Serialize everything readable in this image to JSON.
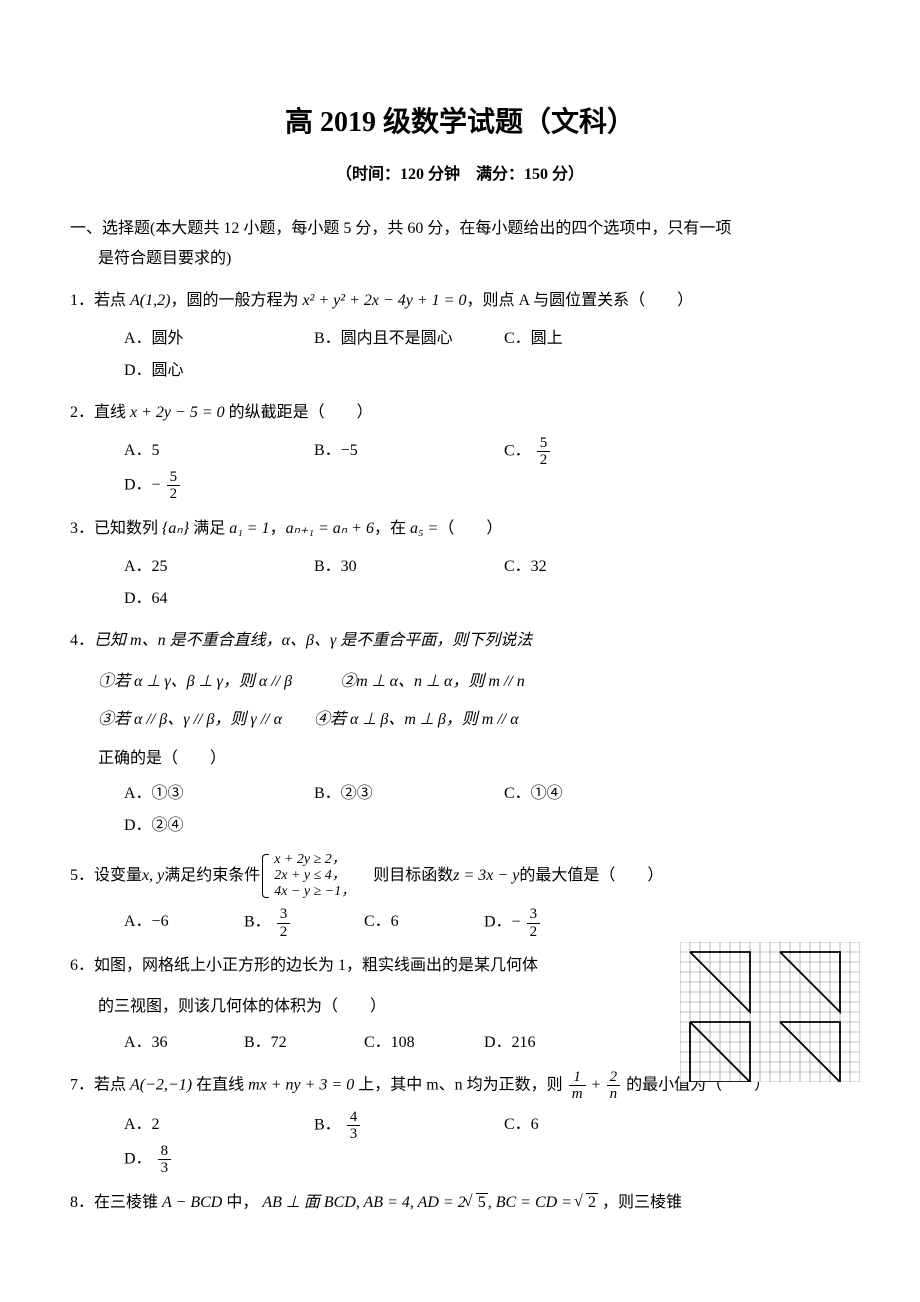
{
  "header": {
    "title": "高 2019 级数学试题（文科）",
    "subtitle": "（时间：120 分钟　满分：150 分）"
  },
  "section": {
    "line1": "一、选择题(本大题共 12 小题，每小题 5 分，共 60 分，在每小题给出的四个选项中，只有一项",
    "line2": "是符合题目要求的)"
  },
  "q1": {
    "num": "1．",
    "pre": "若点 ",
    "point": "A(1,2)",
    "mid": "，圆的一般方程为 ",
    "eq": "x² + y² + 2x − 4y + 1 = 0",
    "post": "，则点 A 与圆位置关系（　　）",
    "optA": "A．圆外",
    "optB": "B．圆内且不是圆心",
    "optC": "C．圆上",
    "optD": "D．圆心"
  },
  "q2": {
    "num": "2．",
    "pre": "直线 ",
    "eq": "x + 2y − 5 = 0",
    "post": " 的纵截距是（　　）",
    "optA": "A．5",
    "optB": "B．−5",
    "optC_pre": "C．",
    "optC_num": "5",
    "optC_den": "2",
    "optD_pre": "D．−",
    "optD_num": "5",
    "optD_den": "2"
  },
  "q3": {
    "num": "3．",
    "pre": "已知数列 ",
    "seq": "{aₙ}",
    "mid1": " 满足 ",
    "a1": "a₁ = 1",
    "comma1": "，",
    "rec": "aₙ₊₁ = aₙ + 6",
    "mid2": "，在 ",
    "a5": "a₅ =",
    "post": "（　　）",
    "optA": "A．25",
    "optB": "B．30",
    "optC": "C．32",
    "optD": "D．64"
  },
  "q4": {
    "num": "4．",
    "stem": "已知 m、n 是不重合直线，α、β、γ 是不重合平面，则下列说法",
    "s1": "①若 α ⊥ γ、β ⊥ γ，则 α // β　　　②m ⊥ α、n ⊥ α，则 m // n",
    "s2": "③若 α // β、γ // β，则 γ // α　　④若 α ⊥ β、m ⊥ β，则 m // α",
    "s3": "正确的是（　　）",
    "optA": "A．①③",
    "optB": "B．②③",
    "optC": "C．①④",
    "optD": "D．②④"
  },
  "q5": {
    "num": "5．",
    "pre": "设变量 ",
    "vars": "x, y",
    "mid1": " 满足约束条件 ",
    "c1": "x + 2y ≥ 2，",
    "c2": "2x + y ≤ 4，",
    "c3": "4x − y ≥ −1，",
    "mid2": "　则目标函数 ",
    "obj": "z = 3x − y",
    "post": " 的最大值是（　　）",
    "optA": "A．−6",
    "optB_pre": "B．",
    "optB_num": "3",
    "optB_den": "2",
    "optC": "C．6",
    "optD_pre": "D．−",
    "optD_num": "3",
    "optD_den": "2"
  },
  "q6": {
    "num": "6．",
    "line1": "如图，网格纸上小正方形的边长为 1，粗实线画出的是某几何体",
    "line2": "的三视图，则该几何体的体积为（　　）",
    "optA": "A．36",
    "optB": "B．72",
    "optC": "C．108",
    "optD": "D．216"
  },
  "q7": {
    "num": "7．",
    "pre": "若点 ",
    "point": "A(−2,−1)",
    "mid1": " 在直线 ",
    "line": "mx + ny + 3 = 0",
    "mid2": " 上，其中 m、n 均为正数，则 ",
    "f1n": "1",
    "f1d": "m",
    "plus": " + ",
    "f2n": "2",
    "f2d": "n",
    "post": " 的最小值为（　　）",
    "optA": "A．2",
    "optB_pre": "B．",
    "optB_num": "4",
    "optB_den": "3",
    "optC": "C．6",
    "optD_pre": "D．",
    "optD_num": "8",
    "optD_den": "3"
  },
  "q8": {
    "num": "8．",
    "pre": "在三棱锥 ",
    "name": "A − BCD",
    "mid1": " 中， ",
    "c1": "AB ⊥ 面 BCD, AB = 4, AD = 2",
    "r1": "5",
    "c2": ", BC = CD = ",
    "r2": "2",
    "post": " ，则三棱锥"
  },
  "figure": {
    "cell_size": 10,
    "cols": 18,
    "rows": 14,
    "grid_color": "#8a8a8a",
    "grid_stroke": 0.6,
    "line_color": "#000000",
    "line_stroke": 1.8,
    "background": "#ffffff",
    "shapes": [
      {
        "type": "polyline",
        "points": [
          [
            1,
            1
          ],
          [
            7,
            1
          ],
          [
            7,
            7
          ],
          [
            1,
            1
          ]
        ]
      },
      {
        "type": "polyline",
        "points": [
          [
            10,
            1
          ],
          [
            16,
            1
          ],
          [
            16,
            7
          ],
          [
            10,
            1
          ]
        ]
      },
      {
        "type": "polyline",
        "points": [
          [
            1,
            8
          ],
          [
            7,
            8
          ],
          [
            7,
            14
          ],
          [
            1,
            14
          ],
          [
            1,
            8
          ]
        ]
      },
      {
        "type": "polyline",
        "points": [
          [
            1,
            8
          ],
          [
            7,
            14
          ]
        ]
      },
      {
        "type": "polyline",
        "points": [
          [
            10,
            8
          ],
          [
            16,
            8
          ],
          [
            16,
            14
          ],
          [
            10,
            8
          ]
        ]
      }
    ]
  }
}
